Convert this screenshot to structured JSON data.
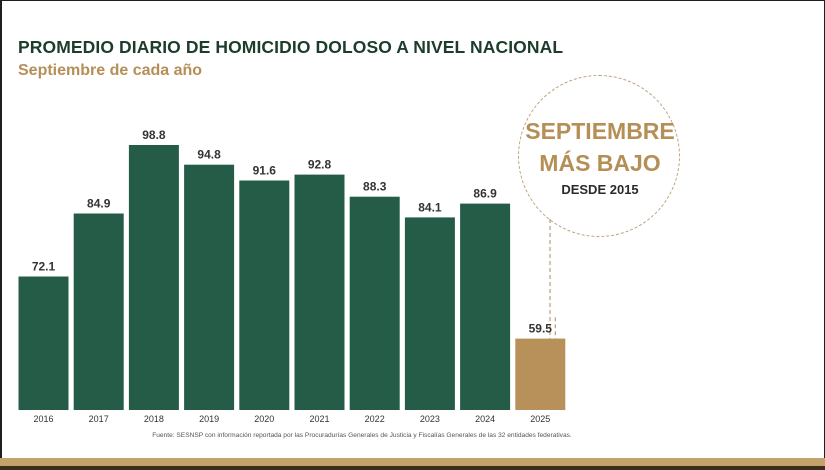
{
  "title": "PROMEDIO DIARIO DE HOMICIDIO DOLOSO A NIVEL NACIONAL",
  "subtitle": "Septiembre de cada año",
  "badge": {
    "line1": "SEPTIEMBRE",
    "line2": "MÁS BAJO",
    "line3": "DESDE 2015"
  },
  "source": "Fuente: SESNSP con información reportada por las Procuradurías Generales de Justicia y Fiscalías Generales de las 32 entidades federativas.",
  "colors": {
    "bar": "#245c48",
    "highlight_bar": "#b8915a",
    "title": "#1c3d2c",
    "accent": "#b58f56",
    "frame_band": "#c4a36a"
  },
  "chart_data": {
    "type": "bar",
    "title": "PROMEDIO DIARIO DE HOMICIDIO DOLOSO A NIVEL NACIONAL",
    "subtitle": "Septiembre de cada año",
    "categories": [
      "2016",
      "2017",
      "2018",
      "2019",
      "2020",
      "2021",
      "2022",
      "2023",
      "2024",
      "2025"
    ],
    "values": [
      72.1,
      84.9,
      98.8,
      94.8,
      91.6,
      92.8,
      88.3,
      84.1,
      86.9,
      59.5
    ],
    "value_labels": [
      "72.1",
      "84.9",
      "98.8",
      "94.8",
      "91.6",
      "92.8",
      "88.3",
      "84.1",
      "86.9",
      "59.5"
    ],
    "highlight_category": "2025",
    "xlabel": "",
    "ylabel": "",
    "ylim": [
      45,
      100
    ],
    "grid": false,
    "legend": "none"
  }
}
